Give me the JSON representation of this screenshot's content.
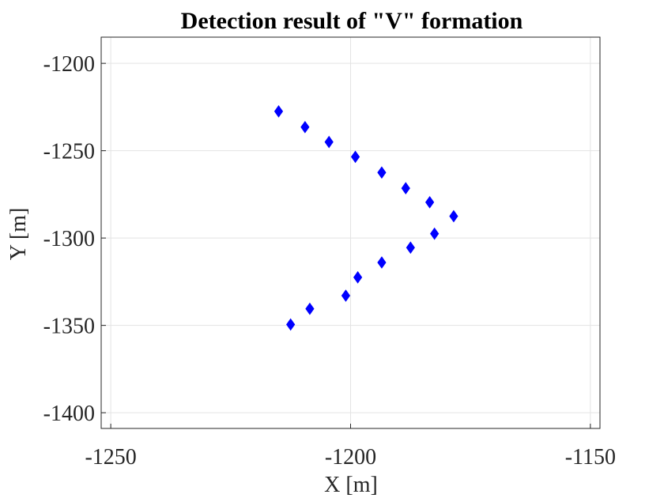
{
  "chart_data": {
    "type": "scatter",
    "title": "Detection result of \"V\" formation",
    "xlabel": "X [m]",
    "ylabel": "Y [m]",
    "xlim": [
      -1252,
      -1148
    ],
    "ylim": [
      -1409,
      -1185
    ],
    "xticks": [
      -1250,
      -1200,
      -1150
    ],
    "yticks": [
      -1200,
      -1250,
      -1300,
      -1350,
      -1400
    ],
    "xtick_labels": [
      "-1250",
      "-1200",
      "-1150"
    ],
    "ytick_labels": [
      "-1200",
      "-1250",
      "-1300",
      "-1350",
      "-1400"
    ],
    "grid": true,
    "marker": "diamond",
    "marker_color": "#0000ff",
    "series": [
      {
        "points": [
          {
            "x": -1215.0,
            "y": -1227.5
          },
          {
            "x": -1209.5,
            "y": -1236.5
          },
          {
            "x": -1204.5,
            "y": -1245.0
          },
          {
            "x": -1199.0,
            "y": -1253.5
          },
          {
            "x": -1193.5,
            "y": -1262.5
          },
          {
            "x": -1188.5,
            "y": -1271.5
          },
          {
            "x": -1183.5,
            "y": -1279.5
          },
          {
            "x": -1178.5,
            "y": -1287.5
          },
          {
            "x": -1182.5,
            "y": -1297.5
          },
          {
            "x": -1187.5,
            "y": -1305.5
          },
          {
            "x": -1193.5,
            "y": -1314.0
          },
          {
            "x": -1198.5,
            "y": -1322.5
          },
          {
            "x": -1201.0,
            "y": -1333.0
          },
          {
            "x": -1208.5,
            "y": -1340.5
          },
          {
            "x": -1212.5,
            "y": -1349.5
          }
        ]
      }
    ]
  }
}
